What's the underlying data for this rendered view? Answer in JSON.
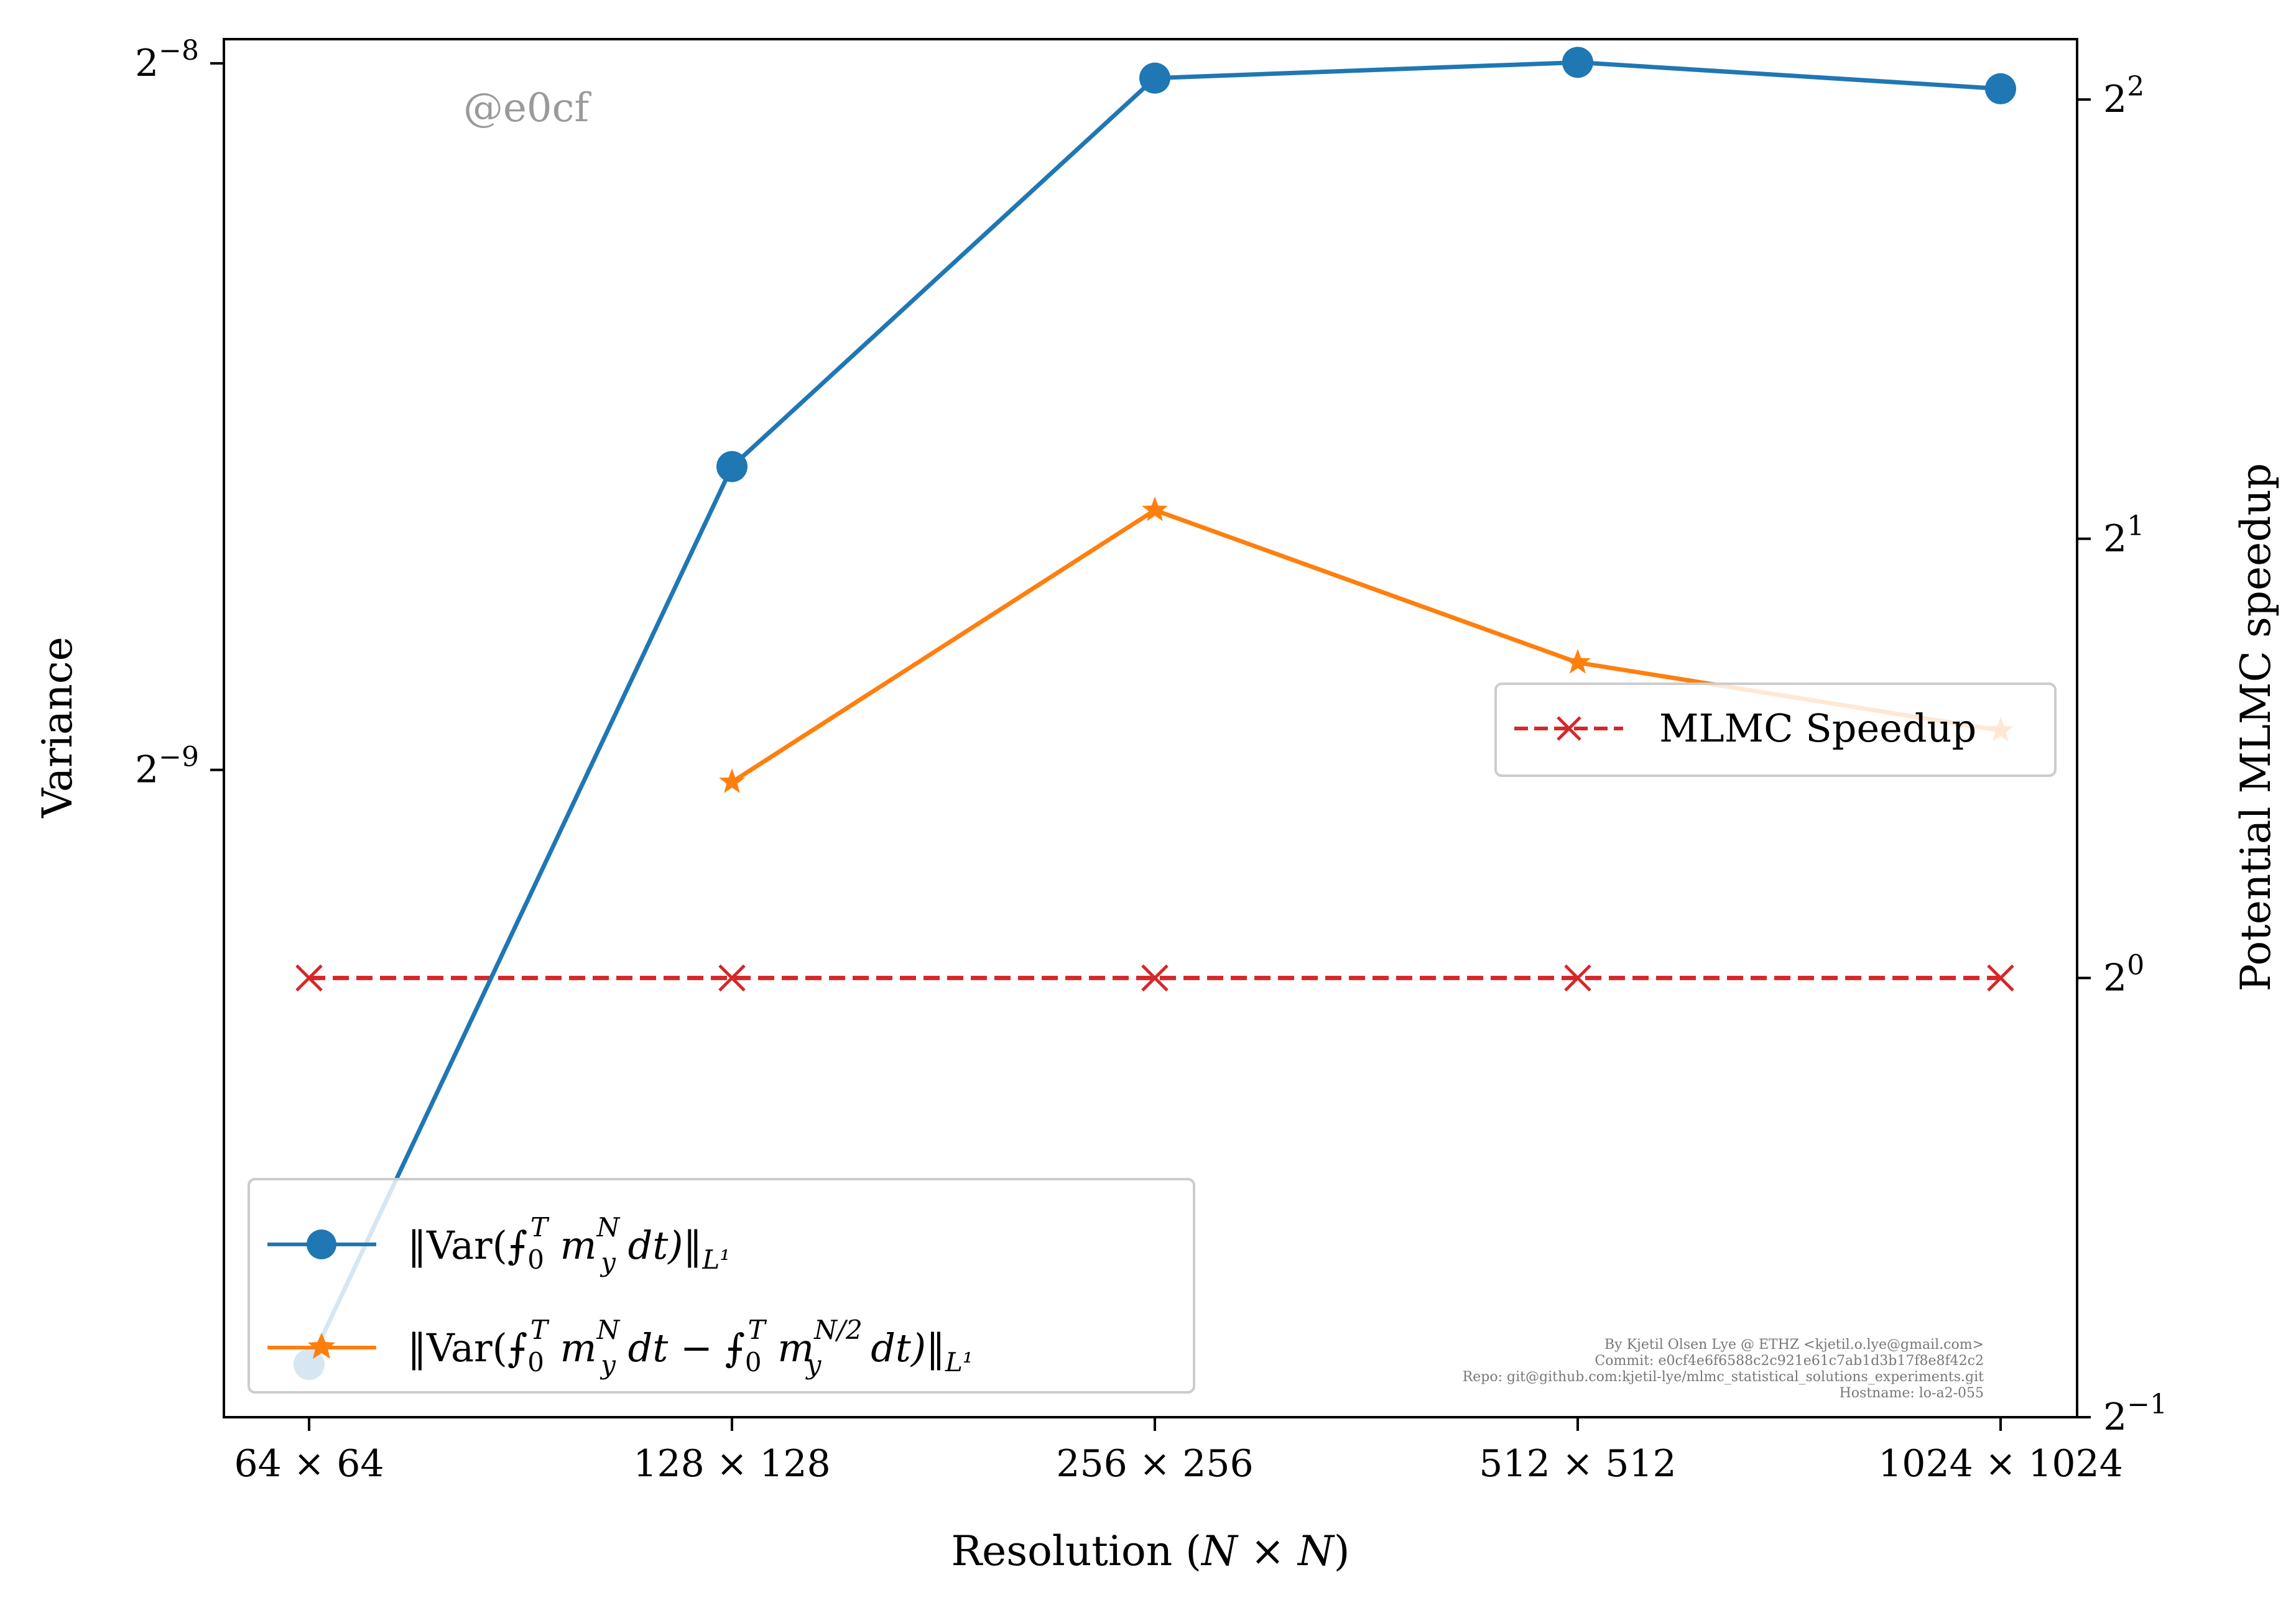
{
  "chart_data": {
    "type": "line",
    "categories": [
      "64 × 64",
      "128 × 128",
      "256 × 256",
      "512 × 512",
      "1024 × 1024"
    ],
    "xlabel": "Resolution (N × N)",
    "ylabel_left": "Variance",
    "ylabel_right": "Potential MLMC speedup",
    "left_axis": {
      "scale": "log2",
      "ticks": [
        {
          "base": "2",
          "exp": "−8",
          "value": 0.00390625
        },
        {
          "base": "2",
          "exp": "−9",
          "value": 0.001953125
        }
      ],
      "ylim": [
        0.001035,
        0.004
      ]
    },
    "right_axis": {
      "scale": "log2",
      "ticks": [
        {
          "base": "2",
          "exp": "2",
          "value": 4
        },
        {
          "base": "2",
          "exp": "1",
          "value": 2
        },
        {
          "base": "2",
          "exp": "0",
          "value": 1
        },
        {
          "base": "2",
          "exp": "−1",
          "value": 0.5
        }
      ],
      "ylim": [
        0.5,
        4.4
      ]
    },
    "series": [
      {
        "name": "‖Var(⨍₀ᵀ m_y^N dt)‖_L¹",
        "axis": "left",
        "color": "#1f77b4",
        "marker": "circle",
        "linestyle": "solid",
        "values": [
          0.00109,
          0.00263,
          0.00385,
          0.00391,
          0.00381
        ]
      },
      {
        "name": "‖Var(⨍₀ᵀ m_y^N dt − ⨍₀ᵀ m_y^(N/2) dt)‖_L¹",
        "axis": "left",
        "color": "#ff7f0e",
        "marker": "star",
        "linestyle": "solid",
        "values": [
          null,
          0.00193,
          0.00252,
          0.00217,
          0.00203
        ]
      },
      {
        "name": "MLMC Speedup",
        "axis": "right",
        "color": "#d62728",
        "marker": "x",
        "linestyle": "dashed",
        "values": [
          1,
          1,
          1,
          1,
          1
        ]
      }
    ],
    "grid": false,
    "legend_left_placement": "lower-left",
    "legend_right_placement": "center-right"
  },
  "legend_left": {
    "item1": {
      "pre": "‖Var(⨍",
      "sub0": "0",
      "supT": "T",
      "m": " m",
      "supN": "N",
      "suby": "y",
      "dt": " dt)‖",
      "subL": "L¹"
    },
    "item2": {
      "pre": "‖Var(⨍",
      "sub0": "0",
      "supT": "T",
      "m": " m",
      "supN": "N",
      "suby": "y",
      "mid": " dt − ⨍",
      "sub0b": "0",
      "supTb": "T",
      "m2": " m",
      "supN2": "N/2",
      "suby2": "y",
      "dt": " dt)‖",
      "subL": "L¹"
    }
  },
  "legend_right": {
    "item1": "MLMC Speedup"
  },
  "watermark": "@e0cf",
  "footer": [
    "By Kjetil Olsen Lye @ ETHZ <kjetil.o.lye@gmail.com>",
    "Commit: e0cf4e6f6588c2c921e61c7ab1d3b17f8e8f42c2",
    "Repo: git@github.com:kjetil-lye/mlmc_statistical_solutions_experiments.git",
    "Hostname: lo-a2-055"
  ]
}
